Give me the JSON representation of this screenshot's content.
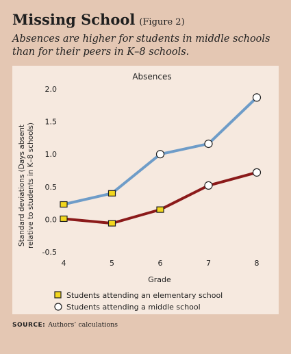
{
  "figure": {
    "title": "Missing School",
    "figure_ref": "(Figure 2)",
    "subtitle_line1": "Absences are higher for students in middle schools",
    "subtitle_line2": "than for their peers in K–8 schools.",
    "source_label": "SOURCE:",
    "source_text": "Authors’ calculations"
  },
  "colors": {
    "background": "#e4c7b3",
    "panel": "#f6e9df",
    "middle_line": "#6e9cc8",
    "elementary_line": "#8b1a1a",
    "square_marker": "#f2d61e"
  },
  "chart_data": {
    "type": "line",
    "title": "Absences",
    "xlabel": "Grade",
    "ylabel_line1": "Standard deviations (Days absent",
    "ylabel_line2": "relative to students in K–8 schools)",
    "x": [
      4,
      5,
      6,
      7,
      8
    ],
    "xticks": [
      "4",
      "5",
      "6",
      "7",
      "8"
    ],
    "yticks": [
      "2.0",
      "1.5",
      "1.0",
      "0.5",
      "0.0",
      "-0.5"
    ],
    "ylim": [
      -0.5,
      2.0
    ],
    "grid": false,
    "legend_position": "bottom",
    "series": [
      {
        "name": "Students attending an elementary school",
        "marker": "square",
        "values": [
          0.23,
          0.4,
          1.0,
          1.16,
          1.87
        ]
      },
      {
        "name": "Students attending a middle school",
        "marker": "circle",
        "values": [
          0.01,
          -0.06,
          0.15,
          0.52,
          0.72
        ]
      }
    ]
  }
}
